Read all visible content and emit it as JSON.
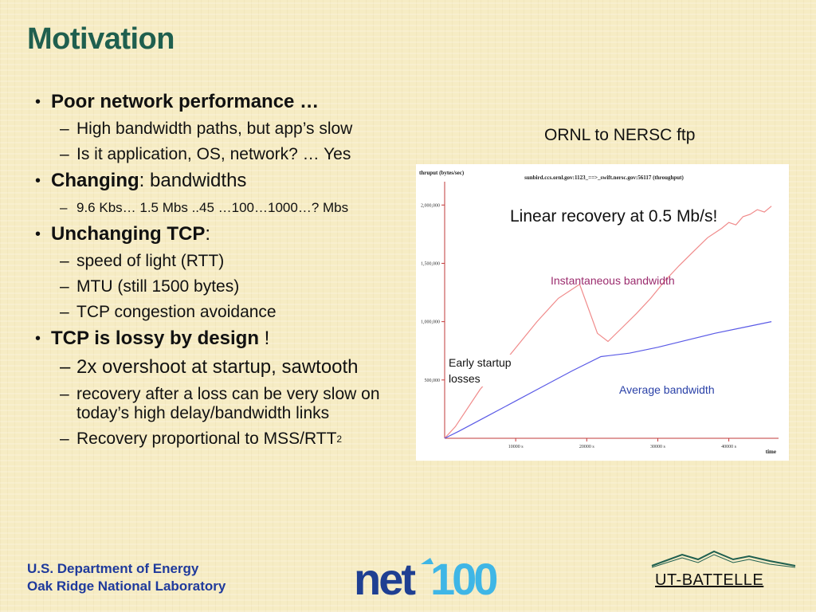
{
  "slide": {
    "title": "Motivation"
  },
  "bullets": {
    "b1": {
      "bold": "Poor network performance …"
    },
    "b1_sub1": "High bandwidth paths, but app’s slow",
    "b1_sub2": "Is it application, OS, network?  … Yes",
    "b2": {
      "bold": "Changing",
      "rest": ": bandwidths"
    },
    "b2_sub1": "9.6 Kbs… 1.5 Mbs ..45 …100…1000…? Mbs",
    "b3": {
      "bold": "Unchanging TCP",
      "rest": ":"
    },
    "b3_sub1": "speed of light (RTT)",
    "b3_sub2": "MTU (still 1500 bytes)",
    "b3_sub3": "TCP congestion avoidance",
    "b4": {
      "bold": "TCP is lossy by design",
      "rest": " !"
    },
    "b4_sub1": "2x overshoot at startup, sawtooth",
    "b4_sub2": "recovery after a loss can be very slow on today’s high delay/bandwidth links",
    "b4_sub3": {
      "text": "Recovery proportional to MSS/RTT",
      "sup": "2"
    }
  },
  "figure": {
    "caption": "ORNL to NERSC ftp",
    "annotation_linear": "Linear recovery at 0.5 Mb/s!",
    "annotation_early": [
      "Early startup",
      "losses"
    ]
  },
  "chart_data": {
    "type": "line",
    "title": "sunbird.ccs.ornl.gov:1123_==>_swift.nersc.gov:56117 (throughput)",
    "ylabel": "thruput (bytes/sec)",
    "xlabel": "time",
    "xlim": [
      0,
      47000
    ],
    "ylim": [
      0,
      2200000
    ],
    "xticks": [
      10000,
      20000,
      30000,
      40000
    ],
    "xtick_labels": [
      "10000 s",
      "20000 s",
      "30000 s",
      "40000 s"
    ],
    "yticks": [
      500000,
      1000000,
      1500000,
      2000000
    ],
    "ytick_labels": [
      "500,000",
      "1,000,000",
      "1,500,000",
      "2,000,000"
    ],
    "series": [
      {
        "name": "Instantaneous bandwidth",
        "color": "#f08a8a",
        "x": [
          0,
          1500,
          5000,
          9000,
          13000,
          16000,
          19000,
          21500,
          23000,
          25000,
          27000,
          29000,
          31000,
          33000,
          35000,
          37000,
          39000,
          40000,
          41000,
          42000,
          43000,
          44000,
          45000,
          46000
        ],
        "y": [
          0,
          100000,
          420000,
          700000,
          1000000,
          1200000,
          1320000,
          900000,
          830000,
          950000,
          1070000,
          1200000,
          1350000,
          1480000,
          1600000,
          1720000,
          1800000,
          1850000,
          1830000,
          1900000,
          1920000,
          1960000,
          1940000,
          1990000
        ]
      },
      {
        "name": "Average bandwidth",
        "color": "#5a5ae6",
        "x": [
          0,
          2000,
          6000,
          10000,
          14000,
          18000,
          22000,
          26000,
          30000,
          34000,
          38000,
          42000,
          46000
        ],
        "y": [
          0,
          60000,
          190000,
          320000,
          450000,
          580000,
          700000,
          730000,
          780000,
          840000,
          900000,
          950000,
          1000000
        ]
      }
    ]
  },
  "footer": {
    "org_line1": "U.S. Department of Energy",
    "org_line2": "Oak Ridge National Laboratory",
    "logo_center_text": "net100",
    "logo_right_text": "UT-BATTELLE"
  },
  "colors": {
    "title": "#1f5f4f",
    "footer_org": "#1f3a9c",
    "instantaneous_label": "#9b2c6e",
    "average_label": "#2b42a8"
  }
}
